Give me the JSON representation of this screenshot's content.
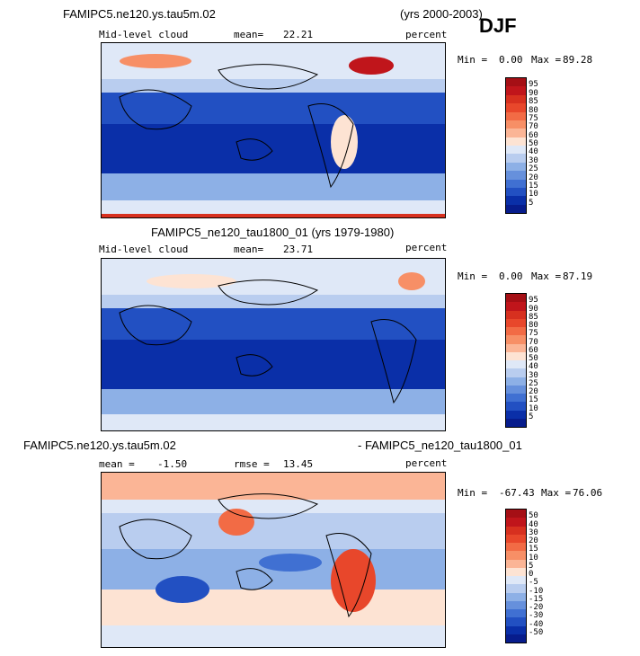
{
  "season": "DJF",
  "chart_data": [
    {
      "type": "heatmap",
      "title": "FAMIPC5.ne120.ys.tau5m.02",
      "years": "(yrs 2000-2003)",
      "variable": "Mid-level cloud",
      "stat_label": "mean=",
      "stat_value": "22.21",
      "units": "percent",
      "min_label": "Min =",
      "min": "0.00",
      "max_label": "Max =",
      "max": "89.28",
      "levels": [
        "95",
        "90",
        "85",
        "80",
        "75",
        "70",
        "60",
        "50",
        "40",
        "30",
        "25",
        "20",
        "15",
        "10",
        "5"
      ],
      "colors": [
        "#a50f15",
        "#c0151b",
        "#d7301f",
        "#e8472b",
        "#f26b45",
        "#f78f66",
        "#fbb596",
        "#fde3d3",
        "#dfe8f7",
        "#b9cdef",
        "#8db0e6",
        "#6690dc",
        "#4070d2",
        "#2250c2",
        "#0a2fa8",
        "#071c8c"
      ]
    },
    {
      "type": "heatmap",
      "title": "FAMIPC5_ne120_tau1800_01 (yrs 1979-1980)",
      "variable": "Mid-level cloud",
      "stat_label": "mean=",
      "stat_value": "23.71",
      "units": "percent",
      "min_label": "Min =",
      "min": "0.00",
      "max_label": "Max =",
      "max": "87.19",
      "levels": [
        "95",
        "90",
        "85",
        "80",
        "75",
        "70",
        "60",
        "50",
        "40",
        "30",
        "25",
        "20",
        "15",
        "10",
        "5"
      ],
      "colors": [
        "#a50f15",
        "#c0151b",
        "#d7301f",
        "#e8472b",
        "#f26b45",
        "#f78f66",
        "#fbb596",
        "#fde3d3",
        "#dfe8f7",
        "#b9cdef",
        "#8db0e6",
        "#6690dc",
        "#4070d2",
        "#2250c2",
        "#0a2fa8",
        "#071c8c"
      ]
    },
    {
      "type": "heatmap",
      "title_left": "FAMIPC5.ne120.ys.tau5m.02",
      "title_right": "- FAMIPC5_ne120_tau1800_01",
      "stat_label": "mean =",
      "stat_value": "-1.50",
      "rmse_label": "rmse =",
      "rmse_value": "13.45",
      "units": "percent",
      "min_label": "Min =",
      "min": "-67.43",
      "max_label": "Max =",
      "max": "76.06",
      "levels": [
        "50",
        "40",
        "30",
        "20",
        "15",
        "10",
        "5",
        "0",
        "-5",
        "-10",
        "-15",
        "-20",
        "-30",
        "-40",
        "-50"
      ],
      "colors": [
        "#a50f15",
        "#c0151b",
        "#d7301f",
        "#e8472b",
        "#f26b45",
        "#f78f66",
        "#fbb596",
        "#fde3d3",
        "#dfe8f7",
        "#b9cdef",
        "#8db0e6",
        "#6690dc",
        "#4070d2",
        "#2250c2",
        "#0a2fa8",
        "#071c8c"
      ]
    }
  ]
}
